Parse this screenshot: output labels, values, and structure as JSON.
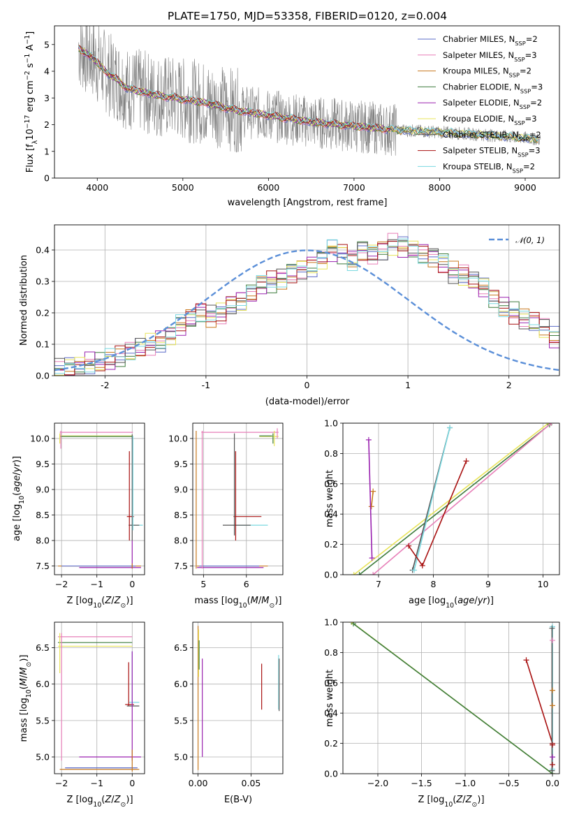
{
  "colors": {
    "data": "#808080",
    "Chabrier MILES": "#5b6bc8",
    "Salpeter MILES": "#e77fb8",
    "Kroupa MILES": "#c8781e",
    "Chabrier ELODIE": "#3c7b3c",
    "Salpeter ELODIE": "#9a22b0",
    "Kroupa ELODIE": "#e8e45a",
    "Chabrier STELIB": "#555555",
    "Salpeter STELIB": "#a81010",
    "Kroupa STELIB": "#7ad8e0",
    "gaussian": "#5b8fd8",
    "grid": "#b0b0b0"
  },
  "chart_data": [
    {
      "id": "spectrum",
      "type": "line",
      "title": "PLATE=1750, MJD=53358, FIBERID=0120, z=0.004",
      "xlabel": "wavelength [Angstrom, rest frame]",
      "ylabel_html": "Flux [f_λ10^-17 erg cm^-2 s^-1 A^-1]",
      "ylabel_parts": [
        "Flux [f",
        "λ",
        "10",
        "−17",
        " erg cm",
        "−2",
        " s",
        "−1",
        " A",
        "−1",
        "]"
      ],
      "xlim": [
        3500,
        9400
      ],
      "ylim": [
        0,
        5.7
      ],
      "xticks": [
        4000,
        5000,
        6000,
        7000,
        8000,
        9000
      ],
      "yticks": [
        0,
        1,
        2,
        3,
        4,
        5
      ],
      "grid": false,
      "legend_position": "top-right",
      "legend": [
        {
          "base": "Chabrier MILES",
          "n": "2"
        },
        {
          "base": "Salpeter MILES",
          "n": "3"
        },
        {
          "base": "Kroupa MILES",
          "n": "2"
        },
        {
          "base": "Chabrier ELODIE",
          "n": "3"
        },
        {
          "base": "Salpeter ELODIE",
          "n": "2"
        },
        {
          "base": "Kroupa ELODIE",
          "n": "3"
        },
        {
          "base": "Chabrier STELIB",
          "n": "2"
        },
        {
          "base": "Salpeter STELIB",
          "n": "3"
        },
        {
          "base": "Kroupa STELIB",
          "n": "2"
        }
      ],
      "legend_prefix": "N",
      "legend_sub": "SSP",
      "data_range": [
        3780,
        9180
      ],
      "model_points": {
        "x": [
          3780,
          3850,
          3950,
          4050,
          4150,
          4250,
          4350,
          4500,
          4700,
          5000,
          5300,
          5600,
          6000,
          6500,
          7000,
          7500,
          8000,
          8500,
          9000,
          9150
        ],
        "y": [
          4.9,
          4.7,
          4.5,
          4.15,
          3.85,
          3.65,
          3.35,
          3.25,
          3.1,
          2.95,
          2.8,
          2.55,
          2.35,
          2.1,
          1.95,
          1.8,
          1.72,
          1.62,
          1.5,
          1.45
        ]
      }
    },
    {
      "id": "residuals",
      "type": "histogram",
      "xlabel": "(data-model)/error",
      "ylabel": "Normed distribution",
      "xlim": [
        -2.5,
        2.5
      ],
      "ylim": [
        0,
        0.48
      ],
      "xticks": [
        -2,
        -1,
        0,
        1,
        2
      ],
      "yticks": [
        0.0,
        0.1,
        0.2,
        0.3,
        0.4
      ],
      "ytick_labels": [
        "0.0",
        "0.1",
        "0.2",
        "0.3",
        "0.4"
      ],
      "grid": true,
      "legend_position": "top-right",
      "gaussian_label": "𝒩(0, 1)",
      "bin_width": 0.1,
      "bin_start": -2.5,
      "base_values": [
        0.02,
        0.025,
        0.03,
        0.04,
        0.04,
        0.05,
        0.06,
        0.075,
        0.09,
        0.1,
        0.11,
        0.13,
        0.16,
        0.18,
        0.2,
        0.19,
        0.2,
        0.23,
        0.24,
        0.26,
        0.29,
        0.3,
        0.31,
        0.33,
        0.34,
        0.35,
        0.37,
        0.4,
        0.39,
        0.37,
        0.4,
        0.39,
        0.4,
        0.42,
        0.41,
        0.4,
        0.39,
        0.38,
        0.36,
        0.33,
        0.32,
        0.3,
        0.28,
        0.25,
        0.22,
        0.2,
        0.18,
        0.17,
        0.15,
        0.12,
        0.1,
        0.09,
        0.08,
        0.06,
        0.05,
        0.04,
        0.03,
        0.03,
        0.02,
        0.02
      ]
    },
    {
      "id": "age_vs_Z",
      "type": "scatter",
      "xlabel": "Z [log10(Z/Z⊙)]",
      "ylabel": "age  [log10(age/yr)]",
      "xlim": [
        -2.2,
        0.35
      ],
      "ylim": [
        7.33,
        10.3
      ],
      "xticks": [
        -2,
        -1,
        0
      ],
      "xtick_labels": [
        "−2",
        "−1",
        "0"
      ],
      "yticks": [
        7.5,
        8.0,
        8.5,
        9.0,
        9.5,
        10.0
      ],
      "ytick_labels": [
        "7.5",
        "8.0",
        "8.5",
        "9.0",
        "9.5",
        "10.0"
      ],
      "grid": true,
      "hbars": [
        {
          "c": "Salpeter MILES",
          "y": 10.12,
          "x0": -2.05,
          "x1": 0.02
        },
        {
          "c": "Kroupa ELODIE",
          "y": 10.05,
          "x0": -2.05,
          "x1": 0.02
        },
        {
          "c": "Chabrier ELODIE",
          "y": 10.04,
          "x0": -2.05,
          "x1": 0.02
        },
        {
          "c": "Salpeter STELIB",
          "y": 8.47,
          "x0": -0.15,
          "x1": 0.05
        },
        {
          "c": "Kroupa STELIB",
          "y": 8.3,
          "x0": -0.1,
          "x1": 0.3
        },
        {
          "c": "Chabrier STELIB",
          "y": 8.3,
          "x0": -0.1,
          "x1": 0.2
        },
        {
          "c": "Kroupa MILES",
          "y": 7.5,
          "x0": -2.1,
          "x1": 0.25
        },
        {
          "c": "Salpeter ELODIE",
          "y": 7.47,
          "x0": -1.5,
          "x1": 0.25
        },
        {
          "c": "Chabrier MILES",
          "y": 7.5,
          "x0": -2.0,
          "x1": 0.1
        }
      ],
      "vbars": [
        {
          "c": "Salpeter MILES",
          "x": -2.02,
          "y0": 9.8,
          "y1": 10.15
        },
        {
          "c": "Kroupa ELODIE",
          "x": -2.05,
          "y0": 9.9,
          "y1": 10.1
        },
        {
          "c": "Salpeter STELIB",
          "x": -0.08,
          "y0": 8.0,
          "y1": 9.75
        },
        {
          "c": "Chabrier STELIB",
          "x": 0.0,
          "y0": 8.0,
          "y1": 10.08
        },
        {
          "c": "Kroupa STELIB",
          "x": 0.02,
          "y0": 8.2,
          "y1": 10.05
        },
        {
          "c": "Salpeter ELODIE",
          "x": 0.0,
          "y0": 7.45,
          "y1": 8.0
        },
        {
          "c": "Kroupa MILES",
          "x": 0.0,
          "y0": 7.45,
          "y1": 7.55
        }
      ]
    },
    {
      "id": "age_vs_mass",
      "type": "scatter",
      "xlabel": "mass [log10(M/M⊙)]",
      "xlim": [
        4.75,
        6.85
      ],
      "ylim": [
        7.33,
        10.3
      ],
      "xticks": [
        5,
        6
      ],
      "xtick_labels": [
        "5",
        "6"
      ],
      "yticks": [
        7.5,
        8.0,
        8.5,
        9.0,
        9.5,
        10.0
      ],
      "ytick_labels": [
        "7.5",
        "8.0",
        "8.5",
        "9.0",
        "9.5",
        "10.0"
      ],
      "grid": true,
      "hbars": [
        {
          "c": "Salpeter MILES",
          "y": 10.12,
          "x0": 4.95,
          "x1": 6.75
        },
        {
          "c": "Kroupa ELODIE",
          "y": 10.04,
          "x0": 6.3,
          "x1": 6.75
        },
        {
          "c": "Chabrier ELODIE",
          "y": 10.05,
          "x0": 6.3,
          "x1": 6.6
        },
        {
          "c": "Salpeter STELIB",
          "y": 8.47,
          "x0": 5.7,
          "x1": 6.35
        },
        {
          "c": "Kroupa STELIB",
          "y": 8.3,
          "x0": 5.7,
          "x1": 6.5
        },
        {
          "c": "Chabrier STELIB",
          "y": 8.3,
          "x0": 5.45,
          "x1": 6.1
        },
        {
          "c": "Kroupa MILES",
          "y": 7.5,
          "x0": 4.85,
          "x1": 6.5
        },
        {
          "c": "Salpeter ELODIE",
          "y": 7.47,
          "x0": 4.85,
          "x1": 6.4
        },
        {
          "c": "Chabrier MILES",
          "y": 7.5,
          "x0": 4.9,
          "x1": 6.3
        }
      ],
      "vbars": [
        {
          "c": "Kroupa MILES",
          "x": 4.83,
          "y0": 7.45,
          "y1": 10.15
        },
        {
          "c": "Salpeter MILES",
          "x": 4.97,
          "y0": 7.45,
          "y1": 10.15
        },
        {
          "c": "Chabrier STELIB",
          "x": 5.72,
          "y0": 8.1,
          "y1": 10.1
        },
        {
          "c": "Salpeter STELIB",
          "x": 5.75,
          "y0": 8.0,
          "y1": 9.75
        },
        {
          "c": "Kroupa ELODIE",
          "x": 6.65,
          "y0": 9.85,
          "y1": 10.15
        },
        {
          "c": "Chabrier ELODIE",
          "x": 6.62,
          "y0": 9.9,
          "y1": 10.1
        },
        {
          "c": "Salpeter MILES",
          "x": 6.72,
          "y0": 10.0,
          "y1": 10.2
        }
      ]
    },
    {
      "id": "weight_vs_age",
      "type": "line",
      "xlabel": "age  [log10(age/yr)]",
      "ylabel": "mass weight",
      "xlim": [
        6.35,
        10.3
      ],
      "ylim": [
        0,
        1
      ],
      "xticks": [
        7,
        8,
        9,
        10
      ],
      "xtick_labels": [
        "7",
        "8",
        "9",
        "10"
      ],
      "yticks": [
        0.0,
        0.2,
        0.4,
        0.6,
        0.8,
        1.0
      ],
      "ytick_labels": [
        "0.0",
        "0.2",
        "0.4",
        "0.6",
        "0.8",
        "1.0"
      ],
      "grid": true,
      "series": [
        {
          "c": "Kroupa ELODIE",
          "x": [
            6.55,
            10.1
          ],
          "y": [
            0.0,
            1.0
          ]
        },
        {
          "c": "Chabrier ELODIE",
          "x": [
            6.65,
            10.12
          ],
          "y": [
            0.0,
            0.99
          ]
        },
        {
          "c": "Salpeter MILES",
          "x": [
            6.9,
            10.15
          ],
          "y": [
            0.0,
            1.0
          ]
        },
        {
          "c": "Kroupa MILES",
          "x": [
            6.87,
            6.9
          ],
          "y": [
            0.45,
            0.55
          ]
        },
        {
          "c": "Salpeter ELODIE",
          "x": [
            6.82,
            6.88
          ],
          "y": [
            0.89,
            0.11
          ]
        },
        {
          "c": "Chabrier STELIB",
          "x": [
            7.62,
            8.3
          ],
          "y": [
            0.03,
            0.97
          ]
        },
        {
          "c": "Kroupa STELIB",
          "x": [
            7.65,
            8.3
          ],
          "y": [
            0.03,
            0.97
          ]
        },
        {
          "c": "Salpeter STELIB",
          "x": [
            7.55,
            7.8,
            8.6
          ],
          "y": [
            0.19,
            0.06,
            0.75
          ]
        }
      ]
    },
    {
      "id": "mass_vs_Z",
      "type": "scatter",
      "xlabel": "Z [log10(Z/Z⊙)]",
      "ylabel": "mass [log10(M/M⊙)]",
      "xlim": [
        -2.2,
        0.35
      ],
      "ylim": [
        4.77,
        6.85
      ],
      "xticks": [
        -2,
        -1,
        0
      ],
      "xtick_labels": [
        "−2",
        "−1",
        "0"
      ],
      "yticks": [
        5.0,
        5.5,
        6.0,
        6.5
      ],
      "ytick_labels": [
        "5.0",
        "5.5",
        "6.0",
        "6.5"
      ],
      "grid": true,
      "hbars": [
        {
          "c": "Salpeter MILES",
          "y": 6.65,
          "x0": -2.1,
          "x1": 0.0
        },
        {
          "c": "Chabrier ELODIE",
          "y": 6.57,
          "x0": -2.1,
          "x1": 0.0
        },
        {
          "c": "Kroupa ELODIE",
          "y": 6.52,
          "x0": -2.1,
          "x1": 0.0
        },
        {
          "c": "Kroupa STELIB",
          "y": 5.75,
          "x0": -0.1,
          "x1": 0.2
        },
        {
          "c": "Salpeter STELIB",
          "y": 5.72,
          "x0": -0.2,
          "x1": 0.05
        },
        {
          "c": "Chabrier STELIB",
          "y": 5.7,
          "x0": -0.15,
          "x1": 0.2
        },
        {
          "c": "Salpeter ELODIE",
          "y": 5.0,
          "x0": -1.5,
          "x1": 0.25
        },
        {
          "c": "Kroupa MILES",
          "y": 4.83,
          "x0": -2.05,
          "x1": 0.2
        },
        {
          "c": "Chabrier MILES",
          "y": 4.85,
          "x0": -1.9,
          "x1": 0.15
        }
      ],
      "vbars": [
        {
          "c": "Salpeter MILES",
          "x": -2.0,
          "y0": 4.95,
          "y1": 6.7
        },
        {
          "c": "Kroupa ELODIE",
          "x": -2.05,
          "y0": 6.15,
          "y1": 6.7
        },
        {
          "c": "Salpeter STELIB",
          "x": -0.1,
          "y0": 5.7,
          "y1": 6.3
        },
        {
          "c": "Kroupa STELIB",
          "x": 0.0,
          "y0": 5.7,
          "y1": 6.45
        },
        {
          "c": "Salpeter ELODIE",
          "x": 0.0,
          "y0": 4.95,
          "y1": 6.45
        },
        {
          "c": "Kroupa MILES",
          "x": 0.0,
          "y0": 4.8,
          "y1": 5.1
        }
      ]
    },
    {
      "id": "mass_vs_ebv",
      "type": "scatter",
      "xlabel": "E(B-V)",
      "xlim": [
        -0.005,
        0.08
      ],
      "ylim": [
        4.77,
        6.85
      ],
      "xticks": [
        0.0,
        0.05
      ],
      "xtick_labels": [
        "0.00",
        "0.05"
      ],
      "yticks": [
        5.0,
        5.5,
        6.0,
        6.5
      ],
      "ytick_labels": [
        "5.0",
        "5.5",
        "6.0",
        "6.5"
      ],
      "grid": true,
      "vbars": [
        {
          "c": "Kroupa MILES",
          "x": 0.0,
          "y0": 4.82,
          "y1": 6.8
        },
        {
          "c": "Kroupa ELODIE",
          "x": 0.0005,
          "y0": 6.1,
          "y1": 6.75
        },
        {
          "c": "Chabrier ELODIE",
          "x": 0.001,
          "y0": 6.2,
          "y1": 6.6
        },
        {
          "c": "Salpeter ELODIE",
          "x": 0.004,
          "y0": 5.0,
          "y1": 6.35
        },
        {
          "c": "Salpeter STELIB",
          "x": 0.06,
          "y0": 5.65,
          "y1": 6.28
        },
        {
          "c": "Kroupa STELIB",
          "x": 0.076,
          "y0": 5.65,
          "y1": 6.4
        },
        {
          "c": "Chabrier STELIB",
          "x": 0.0765,
          "y0": 5.63,
          "y1": 6.35
        }
      ]
    },
    {
      "id": "weight_vs_Z",
      "type": "line",
      "xlabel": "Z [log10(Z/Z⊙)]",
      "ylabel": "mass weight",
      "xlim": [
        -2.4,
        0.08
      ],
      "ylim": [
        0,
        1
      ],
      "xticks": [
        -2.0,
        -1.5,
        -1.0,
        -0.5,
        0.0
      ],
      "xtick_labels": [
        "−2.0",
        "−1.5",
        "−1.0",
        "−0.5",
        "0.0"
      ],
      "yticks": [
        0.0,
        0.2,
        0.4,
        0.6,
        0.8,
        1.0
      ],
      "ytick_labels": [
        "0.0",
        "0.2",
        "0.4",
        "0.6",
        "0.8",
        "1.0"
      ],
      "grid": true,
      "series": [
        {
          "c": "Kroupa ELODIE",
          "x": [
            -2.3,
            0.0
          ],
          "y": [
            1.0,
            0.0
          ]
        },
        {
          "c": "Chabrier ELODIE",
          "x": [
            -2.28,
            0.0
          ],
          "y": [
            0.99,
            0.0
          ]
        },
        {
          "c": "Salpeter STELIB",
          "x": [
            -0.3,
            0.0
          ],
          "y": [
            0.75,
            0.2
          ]
        },
        {
          "c": "Kroupa STELIB",
          "x": [
            0.0,
            0.0
          ],
          "y": [
            0.97,
            0.03
          ]
        },
        {
          "c": "Chabrier STELIB",
          "x": [
            -0.005,
            -0.005
          ],
          "y": [
            0.96,
            0.02
          ]
        }
      ],
      "markers": [
        {
          "c": "Salpeter MILES",
          "x": 0.0,
          "y": 0.88
        },
        {
          "c": "Kroupa MILES",
          "x": 0.0,
          "y": 0.55
        },
        {
          "c": "Kroupa MILES",
          "x": 0.0,
          "y": 0.45
        },
        {
          "c": "Salpeter ELODIE",
          "x": 0.0,
          "y": 0.11
        },
        {
          "c": "Salpeter STELIB",
          "x": 0.0,
          "y": 0.19
        },
        {
          "c": "Salpeter STELIB",
          "x": 0.0,
          "y": 0.06
        }
      ]
    }
  ]
}
